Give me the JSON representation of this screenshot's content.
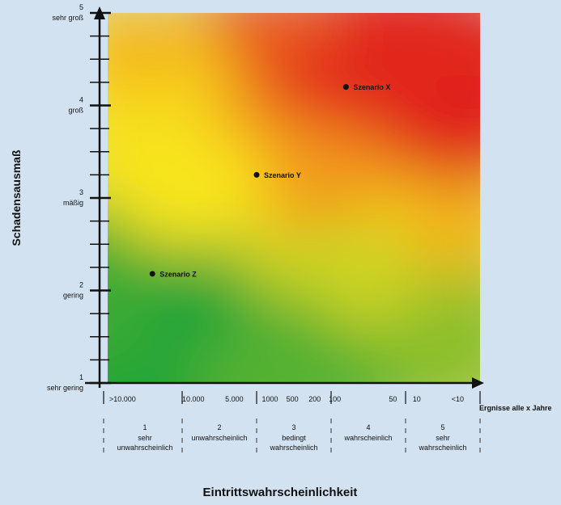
{
  "chart_data": {
    "type": "scatter",
    "xlabel": "Eintrittswahrscheinlichkeit",
    "ylabel": "Schadensausmaß",
    "xunit_label": "Ergnisse alle x Jahre",
    "xlim": [
      0.5,
      5.5
    ],
    "ylim": [
      1,
      5
    ],
    "y_ticks": [
      {
        "value": 1,
        "number": "1",
        "word": "sehr gering"
      },
      {
        "value": 2,
        "number": "2",
        "word": "gering"
      },
      {
        "value": 3,
        "number": "3",
        "word": "mäßig"
      },
      {
        "value": 4,
        "number": "4",
        "word": "groß"
      },
      {
        "value": 5,
        "number": "5",
        "word": "sehr groß"
      }
    ],
    "x_tick_labels": [
      {
        "text": ">10.000",
        "pos": 0.7
      },
      {
        "text": "10.000",
        "pos": 1.65
      },
      {
        "text": "5.000",
        "pos": 2.2
      },
      {
        "text": "1000",
        "pos": 2.68
      },
      {
        "text": "500",
        "pos": 2.98
      },
      {
        "text": "200",
        "pos": 3.28
      },
      {
        "text": "100",
        "pos": 3.55
      },
      {
        "text": "50",
        "pos": 4.33
      },
      {
        "text": "10",
        "pos": 4.65
      },
      {
        "text": "<10",
        "pos": 5.2
      }
    ],
    "categories": [
      {
        "number": "1",
        "lines": [
          "sehr",
          "unwahrscheinlich"
        ]
      },
      {
        "number": "2",
        "lines": [
          "unwahrscheinlich"
        ]
      },
      {
        "number": "3",
        "lines": [
          "bedingt",
          "wahrscheinlich"
        ]
      },
      {
        "number": "4",
        "lines": [
          "wahrscheinlich"
        ]
      },
      {
        "number": "5",
        "lines": [
          "sehr",
          "wahrscheinlich"
        ]
      }
    ],
    "points": [
      {
        "name": "Szenario X",
        "x": 3.7,
        "y": 4.2
      },
      {
        "name": "Szenario Y",
        "x": 2.5,
        "y": 3.25
      },
      {
        "name": "Szenario Z",
        "x": 1.1,
        "y": 2.18
      }
    ],
    "colors": {
      "background": "#d3e2f1",
      "green": "#1aa538",
      "yellow": "#f5e51e",
      "orange": "#f29a1f",
      "red": "#e21f22"
    }
  }
}
